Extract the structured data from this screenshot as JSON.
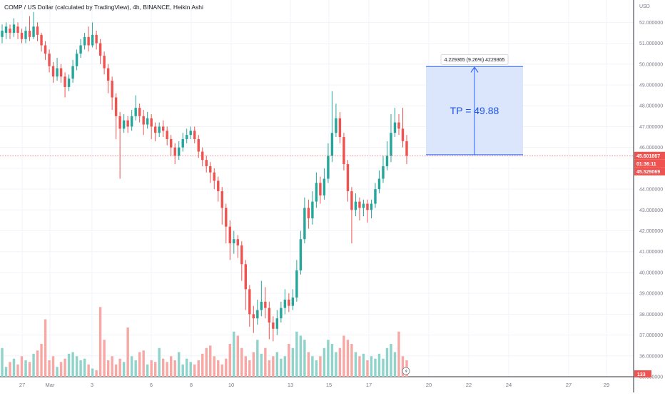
{
  "legend_title": "COMP / US Dollar (calculated by TradingView), 4h, BINANCE, Heikin Ashi",
  "currency_label": "USD",
  "colors": {
    "up": "#26a69a",
    "down": "#ef5350",
    "volume_up": "#8fd3cb",
    "volume_down": "#f7a8a5",
    "grid": "#f0f3fa",
    "axis_text": "#787b86",
    "measure_fill": "#d5e2fb",
    "measure_stroke": "#2962ff",
    "measure_text": "#1e53e5"
  },
  "chart_data": {
    "type": "candlestick",
    "chart_style": "Heikin Ashi",
    "symbol": "COMP / US Dollar",
    "interval": "4h",
    "exchange": "BINANCE",
    "ylim": [
      35.0,
      52.8
    ],
    "y_ticks": [
      "52.000000",
      "51.000000",
      "50.000000",
      "49.000000",
      "48.000000",
      "47.000000",
      "46.000000",
      "45.000000",
      "44.000000",
      "43.000000",
      "42.000000",
      "41.000000",
      "40.000000",
      "39.000000",
      "38.000000",
      "37.000000",
      "36.000000",
      "35.000000"
    ],
    "x_ticks": [
      "27",
      "Mar",
      "3",
      "6",
      "8",
      "10",
      "13",
      "15",
      "17",
      "20",
      "22",
      "24",
      "27",
      "29"
    ],
    "last_price": "45.601867",
    "countdown": "01:36:11",
    "ha_close_label": "45.529069",
    "volume_label": "133",
    "candles": [
      [
        51.3,
        51.6,
        51.9,
        51.0
      ],
      [
        51.5,
        51.8,
        52.0,
        51.2
      ],
      [
        51.7,
        51.5,
        51.9,
        51.2
      ],
      [
        51.5,
        51.9,
        52.2,
        51.3
      ],
      [
        51.8,
        51.5,
        52.0,
        51.2
      ],
      [
        51.5,
        51.2,
        51.7,
        51.0
      ],
      [
        51.2,
        51.6,
        51.8,
        51.0
      ],
      [
        51.6,
        51.3,
        52.3,
        51.1
      ],
      [
        51.3,
        51.8,
        52.5,
        51.2
      ],
      [
        51.8,
        51.4,
        52.0,
        51.1
      ],
      [
        51.4,
        50.9,
        51.5,
        50.6
      ],
      [
        50.9,
        50.5,
        51.1,
        50.2
      ],
      [
        50.5,
        49.9,
        50.7,
        49.6
      ],
      [
        49.9,
        49.4,
        50.1,
        49.1
      ],
      [
        49.4,
        49.8,
        50.3,
        49.2
      ],
      [
        49.8,
        49.4,
        50.0,
        49.1
      ],
      [
        49.4,
        48.9,
        49.6,
        48.4
      ],
      [
        48.9,
        49.3,
        49.5,
        48.7
      ],
      [
        49.3,
        49.9,
        50.2,
        49.1
      ],
      [
        49.9,
        50.5,
        50.7,
        49.7
      ],
      [
        50.5,
        50.9,
        51.2,
        50.3
      ],
      [
        50.9,
        51.3,
        51.5,
        50.7
      ],
      [
        51.3,
        50.9,
        51.8,
        50.6
      ],
      [
        50.9,
        51.4,
        52.0,
        50.8
      ],
      [
        51.4,
        51.0,
        51.6,
        50.7
      ],
      [
        51.0,
        50.4,
        51.2,
        50.0
      ],
      [
        50.4,
        49.8,
        50.6,
        49.5
      ],
      [
        49.8,
        49.2,
        50.0,
        48.6
      ],
      [
        49.2,
        48.4,
        49.4,
        47.8
      ],
      [
        48.4,
        47.5,
        48.6,
        46.4
      ],
      [
        47.5,
        46.9,
        47.7,
        44.5
      ],
      [
        46.9,
        47.3,
        47.6,
        46.7
      ],
      [
        47.3,
        47.0,
        47.5,
        46.7
      ],
      [
        47.0,
        47.5,
        47.8,
        46.8
      ],
      [
        47.5,
        47.9,
        48.5,
        47.3
      ],
      [
        47.9,
        47.5,
        48.1,
        47.2
      ],
      [
        47.5,
        47.1,
        47.8,
        46.6
      ],
      [
        47.1,
        47.4,
        47.7,
        46.9
      ],
      [
        47.4,
        47.0,
        47.6,
        46.4
      ],
      [
        47.0,
        46.7,
        47.2,
        46.3
      ],
      [
        46.7,
        47.0,
        47.2,
        46.5
      ],
      [
        47.0,
        46.8,
        47.3,
        46.5
      ],
      [
        46.8,
        46.4,
        47.0,
        46.1
      ],
      [
        46.4,
        46.0,
        46.6,
        45.6
      ],
      [
        46.0,
        45.6,
        46.2,
        45.2
      ],
      [
        45.6,
        46.0,
        46.3,
        45.4
      ],
      [
        46.0,
        46.4,
        46.7,
        45.8
      ],
      [
        46.4,
        46.6,
        46.9,
        46.2
      ],
      [
        46.6,
        46.8,
        47.0,
        46.4
      ],
      [
        46.8,
        46.4,
        47.0,
        46.2
      ],
      [
        46.4,
        45.8,
        46.6,
        45.5
      ],
      [
        45.8,
        45.4,
        46.0,
        45.1
      ],
      [
        45.4,
        45.1,
        45.6,
        44.8
      ],
      [
        45.1,
        44.8,
        45.3,
        44.3
      ],
      [
        44.8,
        44.4,
        45.0,
        44.0
      ],
      [
        44.4,
        43.9,
        44.6,
        43.4
      ],
      [
        43.9,
        43.1,
        44.1,
        42.3
      ],
      [
        43.1,
        42.2,
        43.3,
        41.4
      ],
      [
        42.2,
        41.4,
        42.5,
        40.6
      ],
      [
        41.4,
        41.6,
        42.0,
        40.9
      ],
      [
        41.6,
        41.3,
        41.8,
        40.7
      ],
      [
        41.3,
        40.4,
        41.5,
        39.6
      ],
      [
        40.4,
        39.2,
        40.6,
        38.2
      ],
      [
        39.2,
        38.0,
        39.4,
        37.4
      ],
      [
        38.0,
        37.8,
        38.4,
        37.1
      ],
      [
        37.8,
        38.2,
        38.7,
        37.5
      ],
      [
        38.2,
        38.6,
        39.6,
        37.9
      ],
      [
        38.6,
        38.3,
        39.3,
        37.8
      ],
      [
        38.3,
        37.6,
        38.6,
        36.8
      ],
      [
        37.6,
        37.3,
        37.9,
        36.7
      ],
      [
        37.3,
        37.8,
        38.2,
        37.0
      ],
      [
        37.8,
        38.3,
        38.6,
        37.6
      ],
      [
        38.3,
        38.7,
        39.2,
        38.0
      ],
      [
        38.7,
        38.4,
        39.0,
        38.1
      ],
      [
        38.4,
        38.8,
        39.2,
        38.2
      ],
      [
        38.8,
        40.1,
        40.6,
        38.6
      ],
      [
        40.1,
        41.6,
        42.0,
        39.9
      ],
      [
        41.6,
        43.1,
        43.6,
        41.4
      ],
      [
        43.1,
        42.6,
        43.5,
        42.1
      ],
      [
        42.6,
        43.4,
        43.9,
        42.3
      ],
      [
        43.4,
        44.3,
        44.8,
        43.1
      ],
      [
        44.3,
        43.7,
        44.6,
        43.3
      ],
      [
        43.7,
        44.5,
        45.0,
        43.5
      ],
      [
        44.5,
        45.6,
        46.2,
        44.3
      ],
      [
        45.6,
        46.7,
        48.7,
        45.3
      ],
      [
        46.7,
        47.4,
        48.1,
        46.5
      ],
      [
        47.4,
        46.5,
        47.7,
        46.2
      ],
      [
        46.5,
        45.2,
        46.7,
        44.9
      ],
      [
        45.2,
        43.9,
        45.4,
        43.4
      ],
      [
        43.9,
        43.0,
        44.1,
        41.4
      ],
      [
        43.0,
        43.4,
        43.8,
        42.7
      ],
      [
        43.4,
        43.1,
        43.6,
        42.5
      ],
      [
        43.1,
        43.3,
        43.5,
        42.7
      ],
      [
        43.3,
        43.0,
        43.5,
        42.4
      ],
      [
        43.0,
        43.3,
        43.5,
        42.6
      ],
      [
        43.3,
        44.0,
        44.3,
        43.1
      ],
      [
        44.0,
        44.5,
        44.9,
        43.8
      ],
      [
        44.5,
        45.1,
        45.6,
        44.3
      ],
      [
        45.1,
        45.6,
        46.3,
        44.9
      ],
      [
        45.6,
        46.7,
        47.6,
        45.3
      ],
      [
        46.7,
        47.2,
        47.9,
        46.5
      ],
      [
        47.2,
        46.9,
        47.6,
        46.6
      ],
      [
        46.9,
        46.3,
        47.9,
        46.0
      ],
      [
        46.3,
        45.6,
        46.6,
        45.2
      ]
    ],
    "volumes": [
      0.35,
      0.12,
      0.18,
      0.22,
      0.15,
      0.25,
      0.2,
      0.18,
      0.28,
      0.32,
      0.4,
      0.7,
      0.2,
      0.25,
      0.12,
      0.18,
      0.22,
      0.28,
      0.3,
      0.25,
      0.2,
      0.22,
      0.15,
      0.1,
      0.08,
      0.85,
      0.45,
      0.2,
      0.25,
      0.15,
      0.22,
      0.18,
      0.6,
      0.25,
      0.2,
      0.3,
      0.32,
      0.15,
      0.2,
      0.18,
      0.35,
      0.22,
      0.18,
      0.25,
      0.2,
      0.3,
      0.15,
      0.22,
      0.18,
      0.15,
      0.2,
      0.28,
      0.35,
      0.38,
      0.25,
      0.2,
      0.15,
      0.22,
      0.4,
      0.55,
      0.5,
      0.35,
      0.25,
      0.2,
      0.3,
      0.45,
      0.28,
      0.35,
      0.2,
      0.25,
      0.3,
      0.22,
      0.25,
      0.4,
      0.35,
      0.55,
      0.5,
      0.45,
      0.3,
      0.25,
      0.2,
      0.25,
      0.35,
      0.45,
      0.4,
      0.3,
      0.35,
      0.5,
      0.45,
      0.4,
      0.3,
      0.25,
      0.28,
      0.2,
      0.25,
      0.22,
      0.28,
      0.22,
      0.35,
      0.4,
      0.3,
      0.55,
      0.25,
      0.2
    ],
    "measure": {
      "label": "4.229365 (9.26%) 4229365",
      "annotation": "TP = 49.88",
      "from_price": 45.65,
      "to_price": 49.88
    }
  }
}
